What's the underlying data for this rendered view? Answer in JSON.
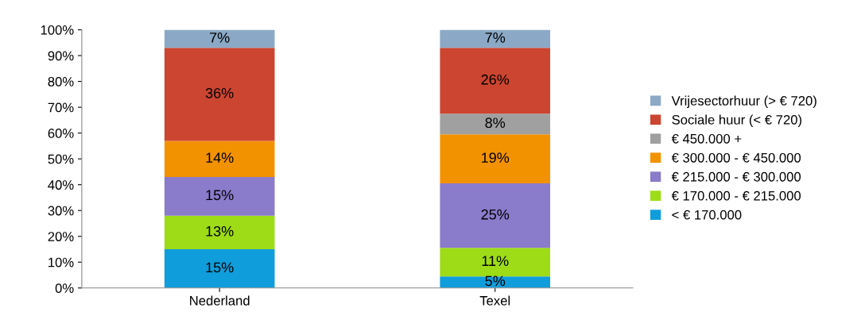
{
  "chart_data": {
    "type": "bar",
    "stacked": true,
    "categories": [
      "Nederland",
      "Texel"
    ],
    "series": [
      {
        "name": "< € 170.000",
        "color": "#0f9ddb",
        "values": [
          15,
          4.5
        ],
        "value_labels": [
          "15%",
          "5%"
        ]
      },
      {
        "name": "€ 170.000 - € 215.000",
        "color": "#9ddc16",
        "values": [
          13,
          11
        ],
        "value_labels": [
          "13%",
          "11%"
        ]
      },
      {
        "name": "€ 215.000 - € 300.000",
        "color": "#8a7bcb",
        "values": [
          15,
          25
        ],
        "value_labels": [
          "15%",
          "25%"
        ]
      },
      {
        "name": "€ 300.000 - € 450.000",
        "color": "#f39200",
        "values": [
          14,
          19
        ],
        "value_labels": [
          "14%",
          "19%"
        ]
      },
      {
        "name": "€ 450.000 +",
        "color": "#a0a0a0",
        "values": [
          null,
          8
        ],
        "value_labels": [
          null,
          "8%"
        ]
      },
      {
        "name": "Sociale huur (< € 720)",
        "color": "#cc4530",
        "values": [
          36,
          25.5
        ],
        "value_labels": [
          "36%",
          "26%"
        ]
      },
      {
        "name": "Vrijesectorhuur (> € 720)",
        "color": "#8ba9c6",
        "values": [
          7,
          7
        ],
        "value_labels": [
          "7%",
          "7%"
        ]
      }
    ],
    "ylim": [
      0,
      100
    ],
    "yticks": [
      {
        "value": 0,
        "label": "0%"
      },
      {
        "value": 10,
        "label": "10%"
      },
      {
        "value": 20,
        "label": "20%"
      },
      {
        "value": 30,
        "label": "30%"
      },
      {
        "value": 40,
        "label": "40%"
      },
      {
        "value": 50,
        "label": "50%"
      },
      {
        "value": 60,
        "label": "60%"
      },
      {
        "value": 70,
        "label": "70%"
      },
      {
        "value": 80,
        "label": "80%"
      },
      {
        "value": 90,
        "label": "90%"
      },
      {
        "value": 100,
        "label": "100%"
      }
    ],
    "legend": "right",
    "grid": false
  }
}
